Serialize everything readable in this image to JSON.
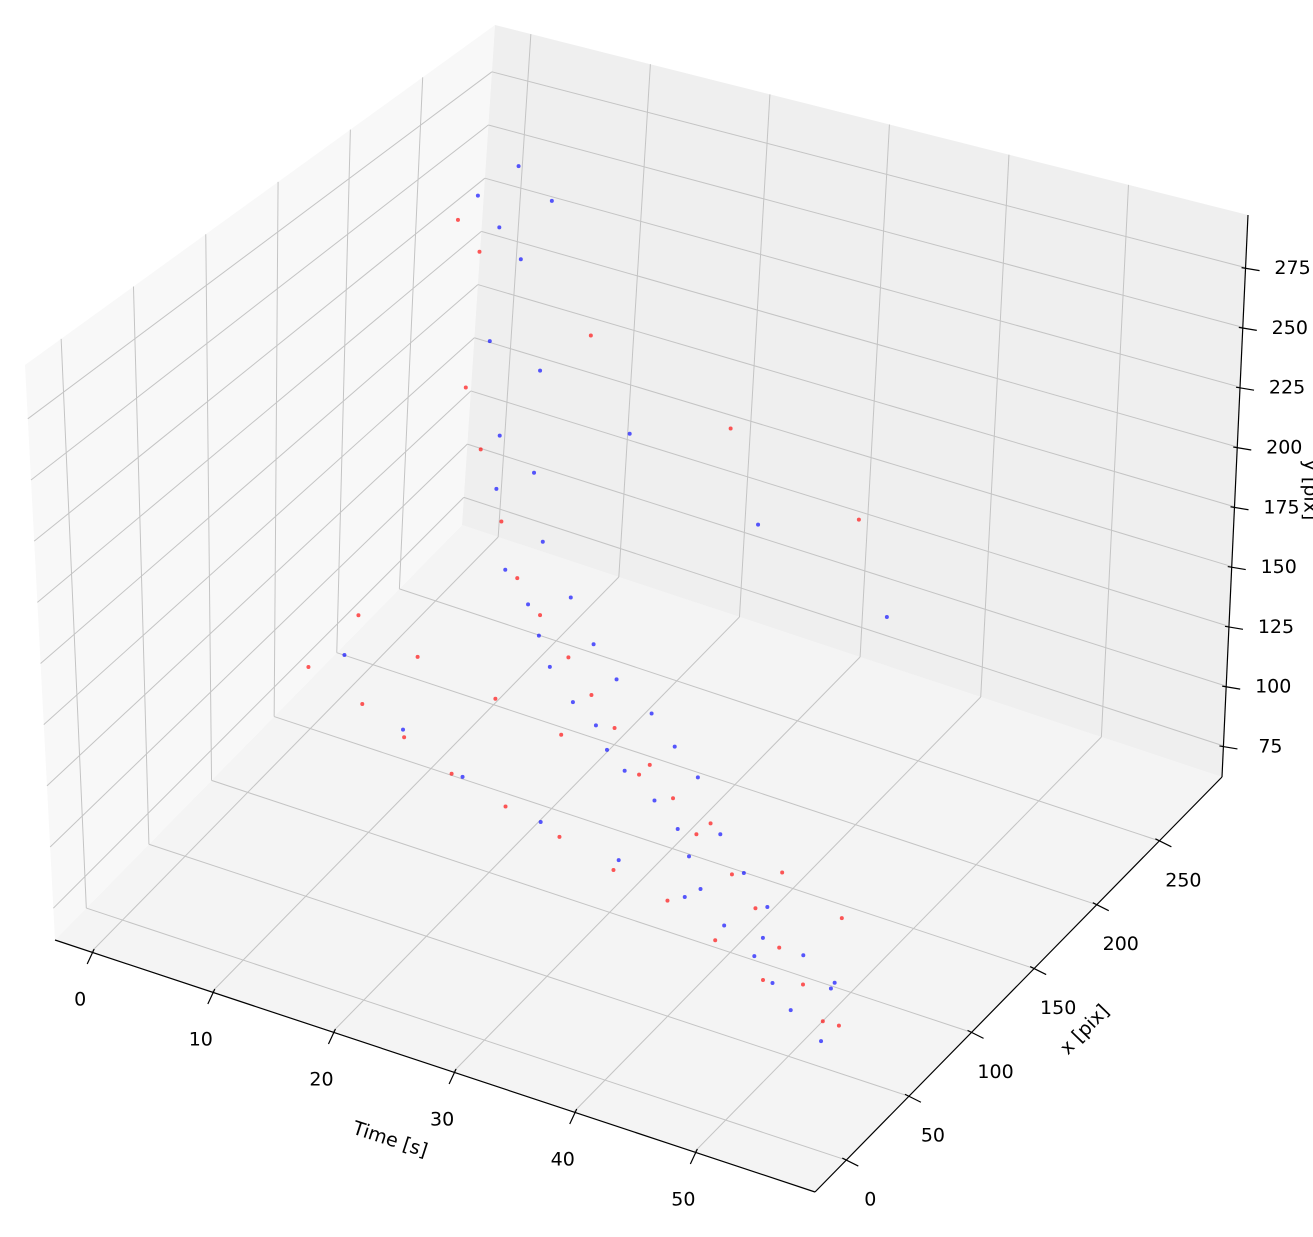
{
  "chart_data": {
    "type": "scatter3d",
    "xlabel": "Time [s]",
    "ylabel": "x [pix]",
    "zlabel": "y [pix]",
    "xlim": [
      -3,
      60
    ],
    "ylim": [
      -25,
      300
    ],
    "zlim": [
      62,
      297
    ],
    "xticks": [
      0,
      10,
      20,
      30,
      40,
      50
    ],
    "yticks": [
      0,
      50,
      100,
      150,
      200,
      250
    ],
    "zticks": [
      75,
      100,
      125,
      150,
      175,
      200,
      225,
      250,
      275
    ],
    "grid": true,
    "series": [
      {
        "color": "#0000ff",
        "x": [
          2,
          5,
          8,
          10,
          12,
          15,
          18,
          20,
          22,
          25,
          28,
          30,
          32,
          35,
          38,
          40,
          42,
          45,
          48,
          50,
          52,
          55,
          3,
          7,
          11,
          14,
          17,
          21,
          24,
          27,
          31,
          34,
          37,
          41,
          44,
          47,
          51,
          54,
          6,
          13,
          19,
          26,
          33,
          39,
          46,
          53,
          9,
          23,
          36,
          49
        ],
        "y": [
          250,
          240,
          230,
          200,
          180,
          160,
          150,
          140,
          130,
          120,
          110,
          100,
          95,
          90,
          80,
          70,
          60,
          50,
          45,
          40,
          35,
          30,
          270,
          260,
          220,
          190,
          170,
          155,
          145,
          135,
          125,
          115,
          105,
          85,
          75,
          65,
          55,
          48,
          120,
          100,
          90,
          85,
          80,
          75,
          70,
          60,
          200,
          180,
          160,
          140
        ],
        "z": [
          250,
          245,
          240,
          180,
          170,
          150,
          145,
          140,
          135,
          130,
          130,
          128,
          125,
          120,
          118,
          115,
          110,
          105,
          100,
          95,
          90,
          85,
          255,
          250,
          200,
          175,
          160,
          150,
          140,
          135,
          132,
          128,
          125,
          118,
          112,
          108,
          100,
          95,
          120,
          110,
          105,
          100,
          98,
          95,
          92,
          90,
          220,
          210,
          200,
          190
        ]
      },
      {
        "color": "#ff0000",
        "x": [
          1,
          4,
          6,
          9,
          13,
          16,
          19,
          23,
          26,
          29,
          33,
          36,
          39,
          43,
          46,
          49,
          52,
          56,
          3,
          8,
          12,
          17,
          22,
          27,
          32,
          37,
          42,
          47,
          53,
          5,
          11,
          18,
          24,
          31,
          38,
          45,
          51,
          14,
          28,
          41
        ],
        "y": [
          245,
          235,
          210,
          195,
          175,
          160,
          150,
          135,
          125,
          115,
          105,
          95,
          85,
          75,
          65,
          55,
          45,
          35,
          120,
          115,
          110,
          100,
          95,
          90,
          85,
          80,
          70,
          60,
          50,
          140,
          130,
          125,
          120,
          115,
          105,
          95,
          85,
          230,
          210,
          190
        ],
        "z": [
          240,
          235,
          190,
          175,
          160,
          148,
          142,
          138,
          132,
          128,
          124,
          120,
          115,
          110,
          106,
          100,
          95,
          90,
          110,
          105,
          100,
          98,
          95,
          93,
          90,
          88,
          85,
          82,
          80,
          125,
          122,
          118,
          115,
          112,
          108,
          104,
          100,
          215,
          205,
          195
        ]
      }
    ]
  }
}
